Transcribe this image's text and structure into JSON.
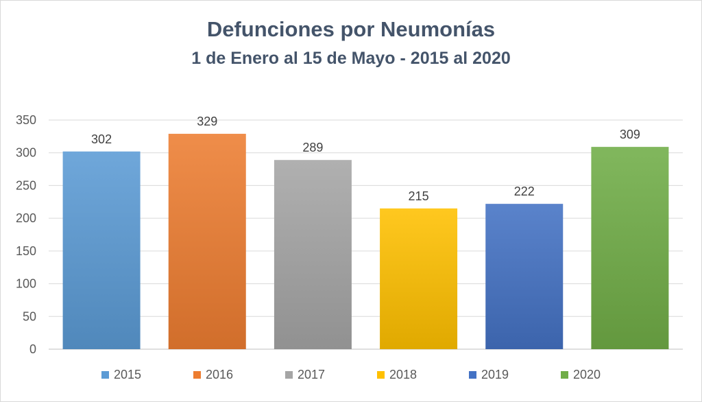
{
  "chart_data": {
    "type": "bar",
    "title": "Defunciones por Neumonías",
    "subtitle": "1 de Enero al 15 de Mayo - 2015 al 2020",
    "categories": [
      "2015",
      "2016",
      "2017",
      "2018",
      "2019",
      "2020"
    ],
    "values": [
      302,
      329,
      289,
      215,
      222,
      309
    ],
    "data_labels": [
      "302",
      "329",
      "289",
      "215",
      "222",
      "309"
    ],
    "colors": [
      "#5b9bd5",
      "#ed7d31",
      "#a5a5a5",
      "#ffc000",
      "#4472c4",
      "#70ad47"
    ],
    "ylim": [
      0,
      350
    ],
    "yticks": [
      "0",
      "50",
      "100",
      "150",
      "200",
      "250",
      "300",
      "350"
    ],
    "xlabel": "",
    "ylabel": "",
    "grid": true,
    "legend": "bottom"
  }
}
